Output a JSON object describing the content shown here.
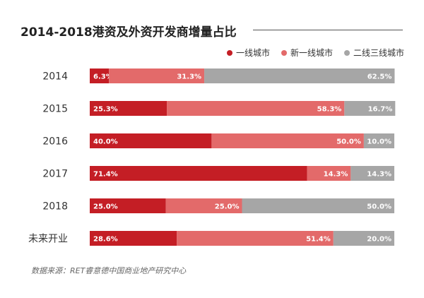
{
  "title": "2014-2018港资及外资开发商增量占比",
  "source": "数据来源：RET睿意德中国商业地产研究中心",
  "colors": {
    "tier1": "#c41e25",
    "new_tier1": "#e36a6a",
    "tier23": "#a6a6a6",
    "rule": "#555555"
  },
  "chart_data": {
    "type": "bar",
    "orientation": "horizontal",
    "stacked": true,
    "percent": true,
    "categories": [
      "2014",
      "2015",
      "2016",
      "2017",
      "2018",
      "未来开业"
    ],
    "series": [
      {
        "name": "一线城市",
        "color": "#c41e25",
        "values": [
          6.3,
          25.3,
          40.0,
          71.4,
          25.0,
          28.6
        ],
        "labels": [
          "6.3%",
          "25.3%",
          "40.0%",
          "71.4%",
          "25.0%",
          "28.6%"
        ]
      },
      {
        "name": "新一线城市",
        "color": "#e36a6a",
        "values": [
          31.3,
          58.3,
          50.0,
          14.3,
          25.0,
          51.4
        ],
        "labels": [
          "31.3%",
          "58.3%",
          "50.0%",
          "14.3%",
          "25.0%",
          "51.4%"
        ]
      },
      {
        "name": "二线三线城市",
        "color": "#a6a6a6",
        "values": [
          62.5,
          16.7,
          10.0,
          14.3,
          50.0,
          20.0
        ],
        "labels": [
          "62.5%",
          "16.7%",
          "10.0%",
          "14.3%",
          "50.0%",
          "20.0%"
        ]
      }
    ],
    "xlim": [
      0,
      100
    ],
    "legend_position": "top-right",
    "grid": false
  }
}
